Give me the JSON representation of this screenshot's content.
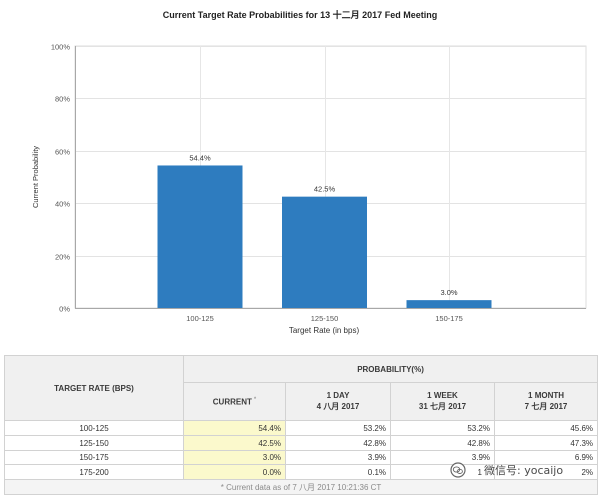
{
  "chart_data": {
    "type": "bar",
    "title": "Current Target Rate Probabilities for 13 十二月 2017 Fed Meeting",
    "xlabel": "Target Rate (in bps)",
    "ylabel": "Current Probability",
    "categories": [
      "100-125",
      "125-150",
      "150-175"
    ],
    "values": [
      54.4,
      42.5,
      3.0
    ],
    "data_labels": [
      "54.4%",
      "42.5%",
      "3.0%"
    ],
    "ylim": [
      0,
      100
    ],
    "yticks": [
      0,
      20,
      40,
      60,
      80,
      100
    ],
    "ytick_labels": [
      "0%",
      "20%",
      "40%",
      "60%",
      "80%",
      "100%"
    ],
    "grid": true,
    "color": "#2e7cbf"
  },
  "table": {
    "header": {
      "target_rate": "TARGET RATE (BPS)",
      "probability": "PROBABILITY(%)",
      "columns": [
        {
          "line1": "CURRENT",
          "mark": "*"
        },
        {
          "line1": "1 DAY",
          "line2": "4 八月 2017"
        },
        {
          "line1": "1 WEEK",
          "line2": "31 七月 2017"
        },
        {
          "line1": "1 MONTH",
          "line2": "7 七月 2017"
        }
      ]
    },
    "rows": [
      {
        "rate": "100-125",
        "values": [
          "54.4%",
          "53.2%",
          "53.2%",
          "45.6%"
        ]
      },
      {
        "rate": "125-150",
        "values": [
          "42.5%",
          "42.8%",
          "42.8%",
          "47.3%"
        ]
      },
      {
        "rate": "150-175",
        "values": [
          "3.0%",
          "3.9%",
          "3.9%",
          "6.9%"
        ]
      },
      {
        "rate": "175-200",
        "values": [
          "0.0%",
          "0.1%",
          "1",
          "2%"
        ]
      }
    ],
    "footer": "* Current data as of 7 八月 2017 10:21:36 CT",
    "current_highlight": "#fbf9cc"
  },
  "watermark": {
    "text": "微信号: yocaijo",
    "icon": "wechat-icon"
  }
}
